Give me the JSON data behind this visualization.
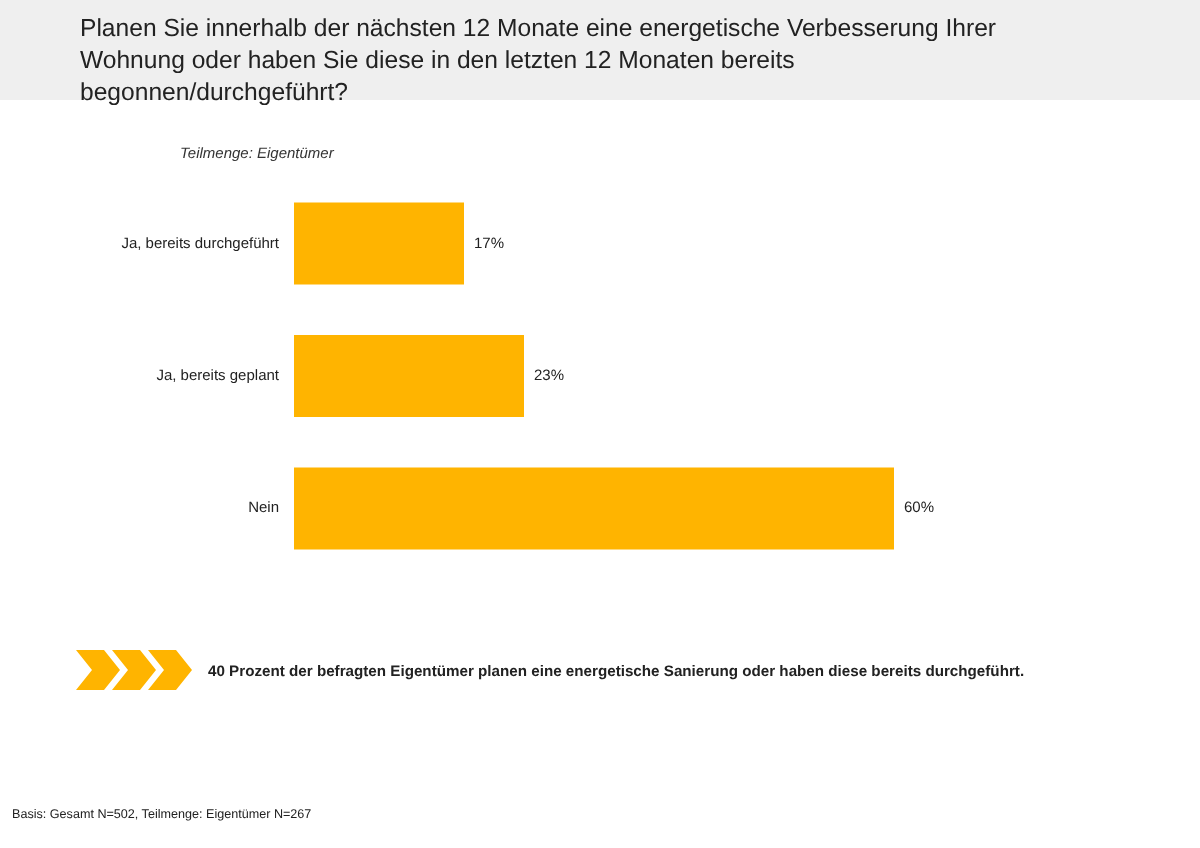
{
  "chart_data": {
    "type": "bar",
    "orientation": "horizontal",
    "title": "Planen Sie innerhalb der nächsten 12 Monate eine energetische Verbesserung Ihrer Wohnung oder haben Sie diese in den letzten 12 Monaten bereits begonnen/durchgeführt?",
    "subtitle": "Teilmenge: Eigentümer",
    "categories": [
      "Ja, bereits durchgeführt",
      "Ja, bereits geplant",
      "Nein"
    ],
    "values": [
      17,
      23,
      60
    ],
    "color": "#ffb400",
    "data_labels": true,
    "value_labels": [
      "17%",
      "23%",
      "60%"
    ],
    "annotations": [
      "40 Prozent der befragten Eigentümer planen eine energetische Sanierung oder haben diese bereits durchgeführt.",
      "Basis: Gesamt N=502, Teilmenge: Eigentümer N=267"
    ]
  }
}
